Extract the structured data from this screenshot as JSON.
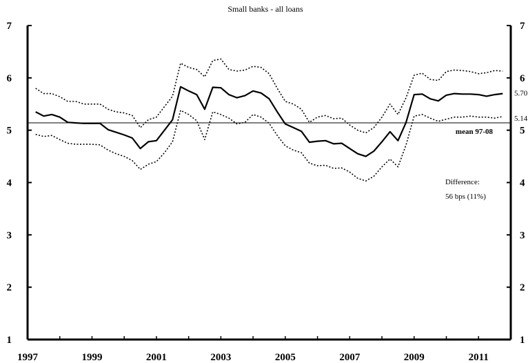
{
  "chart_data": {
    "type": "line",
    "title": "Small banks - all loans",
    "xlabel": "",
    "ylabel": "",
    "xlim": [
      1997,
      2012
    ],
    "ylim": [
      1,
      7
    ],
    "x_ticks": [
      "1997",
      "1999",
      "2001",
      "2003",
      "2005",
      "2007",
      "2009",
      "2011"
    ],
    "y_ticks": [
      "1",
      "2",
      "3",
      "4",
      "5",
      "6",
      "7"
    ],
    "grid": false,
    "series": [
      {
        "role": "central",
        "x": [
          1997.25,
          1997.5,
          1997.75,
          1998.0,
          1998.25,
          1998.5,
          1998.75,
          1999.0,
          1999.25,
          1999.5,
          1999.75,
          2000.0,
          2000.25,
          2000.5,
          2000.75,
          2001.0,
          2001.25,
          2001.5,
          2001.75,
          2002.0,
          2002.25,
          2002.5,
          2002.75,
          2003.0,
          2003.25,
          2003.5,
          2003.75,
          2004.0,
          2004.25,
          2004.5,
          2004.75,
          2005.0,
          2005.25,
          2005.5,
          2005.75,
          2006.0,
          2006.25,
          2006.5,
          2006.75,
          2007.0,
          2007.25,
          2007.5,
          2007.75,
          2008.0,
          2008.25,
          2008.5,
          2008.75,
          2009.0,
          2009.25,
          2009.5,
          2009.75,
          2010.0,
          2010.25,
          2010.5,
          2010.75,
          2011.0,
          2011.25,
          2011.5,
          2011.75
        ],
        "y": [
          5.35,
          5.27,
          5.3,
          5.25,
          5.15,
          5.14,
          5.13,
          5.13,
          5.13,
          5.01,
          4.96,
          4.91,
          4.85,
          4.65,
          4.78,
          4.8,
          5.0,
          5.2,
          5.83,
          5.75,
          5.68,
          5.4,
          5.82,
          5.81,
          5.68,
          5.62,
          5.66,
          5.75,
          5.71,
          5.6,
          5.35,
          5.12,
          5.05,
          4.98,
          4.77,
          4.79,
          4.8,
          4.74,
          4.75,
          4.65,
          4.55,
          4.5,
          4.6,
          4.78,
          4.97,
          4.8,
          5.15,
          5.68,
          5.69,
          5.6,
          5.56,
          5.67,
          5.7,
          5.69,
          5.69,
          5.68,
          5.65,
          5.68,
          5.7
        ]
      },
      {
        "role": "upper-band",
        "x": [
          1997.25,
          1997.5,
          1997.75,
          1998.0,
          1998.25,
          1998.5,
          1998.75,
          1999.0,
          1999.25,
          1999.5,
          1999.75,
          2000.0,
          2000.25,
          2000.5,
          2000.75,
          2001.0,
          2001.25,
          2001.5,
          2001.75,
          2002.0,
          2002.25,
          2002.5,
          2002.75,
          2003.0,
          2003.25,
          2003.5,
          2003.75,
          2004.0,
          2004.25,
          2004.5,
          2004.75,
          2005.0,
          2005.25,
          2005.5,
          2005.75,
          2006.0,
          2006.25,
          2006.5,
          2006.75,
          2007.0,
          2007.25,
          2007.5,
          2007.75,
          2008.0,
          2008.25,
          2008.5,
          2008.75,
          2009.0,
          2009.25,
          2009.5,
          2009.75,
          2010.0,
          2010.25,
          2010.5,
          2010.75,
          2011.0,
          2011.25,
          2011.5,
          2011.75
        ],
        "y": [
          5.8,
          5.7,
          5.7,
          5.64,
          5.55,
          5.55,
          5.5,
          5.5,
          5.5,
          5.4,
          5.35,
          5.33,
          5.28,
          5.05,
          5.2,
          5.25,
          5.45,
          5.65,
          6.28,
          6.2,
          6.16,
          6.02,
          6.33,
          6.36,
          6.16,
          6.13,
          6.15,
          6.22,
          6.2,
          6.08,
          5.8,
          5.55,
          5.5,
          5.4,
          5.15,
          5.25,
          5.28,
          5.22,
          5.23,
          5.1,
          5.0,
          4.95,
          5.05,
          5.25,
          5.5,
          5.3,
          5.62,
          6.05,
          6.09,
          5.97,
          5.95,
          6.12,
          6.15,
          6.14,
          6.12,
          6.08,
          6.1,
          6.14,
          6.13
        ]
      },
      {
        "role": "lower-band",
        "x": [
          1997.25,
          1997.5,
          1997.75,
          1998.0,
          1998.25,
          1998.5,
          1998.75,
          1999.0,
          1999.25,
          1999.5,
          1999.75,
          2000.0,
          2000.25,
          2000.5,
          2000.75,
          2001.0,
          2001.25,
          2001.5,
          2001.75,
          2002.0,
          2002.25,
          2002.5,
          2002.75,
          2003.0,
          2003.25,
          2003.5,
          2003.75,
          2004.0,
          2004.25,
          2004.5,
          2004.75,
          2005.0,
          2005.25,
          2005.5,
          2005.75,
          2006.0,
          2006.25,
          2006.5,
          2006.75,
          2007.0,
          2007.25,
          2007.5,
          2007.75,
          2008.0,
          2008.25,
          2008.5,
          2008.75,
          2009.0,
          2009.25,
          2009.5,
          2009.75,
          2010.0,
          2010.25,
          2010.5,
          2010.75,
          2011.0,
          2011.25,
          2011.5,
          2011.75
        ],
        "y": [
          4.92,
          4.88,
          4.9,
          4.82,
          4.75,
          4.73,
          4.73,
          4.73,
          4.72,
          4.62,
          4.55,
          4.5,
          4.42,
          4.25,
          4.35,
          4.4,
          4.57,
          4.78,
          5.38,
          5.3,
          5.18,
          4.82,
          5.35,
          5.3,
          5.23,
          5.12,
          5.15,
          5.3,
          5.25,
          5.13,
          4.9,
          4.7,
          4.62,
          4.57,
          4.37,
          4.32,
          4.33,
          4.27,
          4.28,
          4.2,
          4.08,
          4.03,
          4.12,
          4.3,
          4.45,
          4.3,
          4.72,
          5.27,
          5.3,
          5.23,
          5.17,
          5.21,
          5.25,
          5.25,
          5.27,
          5.25,
          5.25,
          5.23,
          5.26
        ]
      }
    ],
    "reference_line": {
      "value": 5.14,
      "label": "mean 97-08"
    },
    "right_labels": {
      "last": "5.70",
      "mean": "5.14"
    },
    "annotation": {
      "line1": "Difference:",
      "line2": "56 bps  (11%)"
    }
  }
}
